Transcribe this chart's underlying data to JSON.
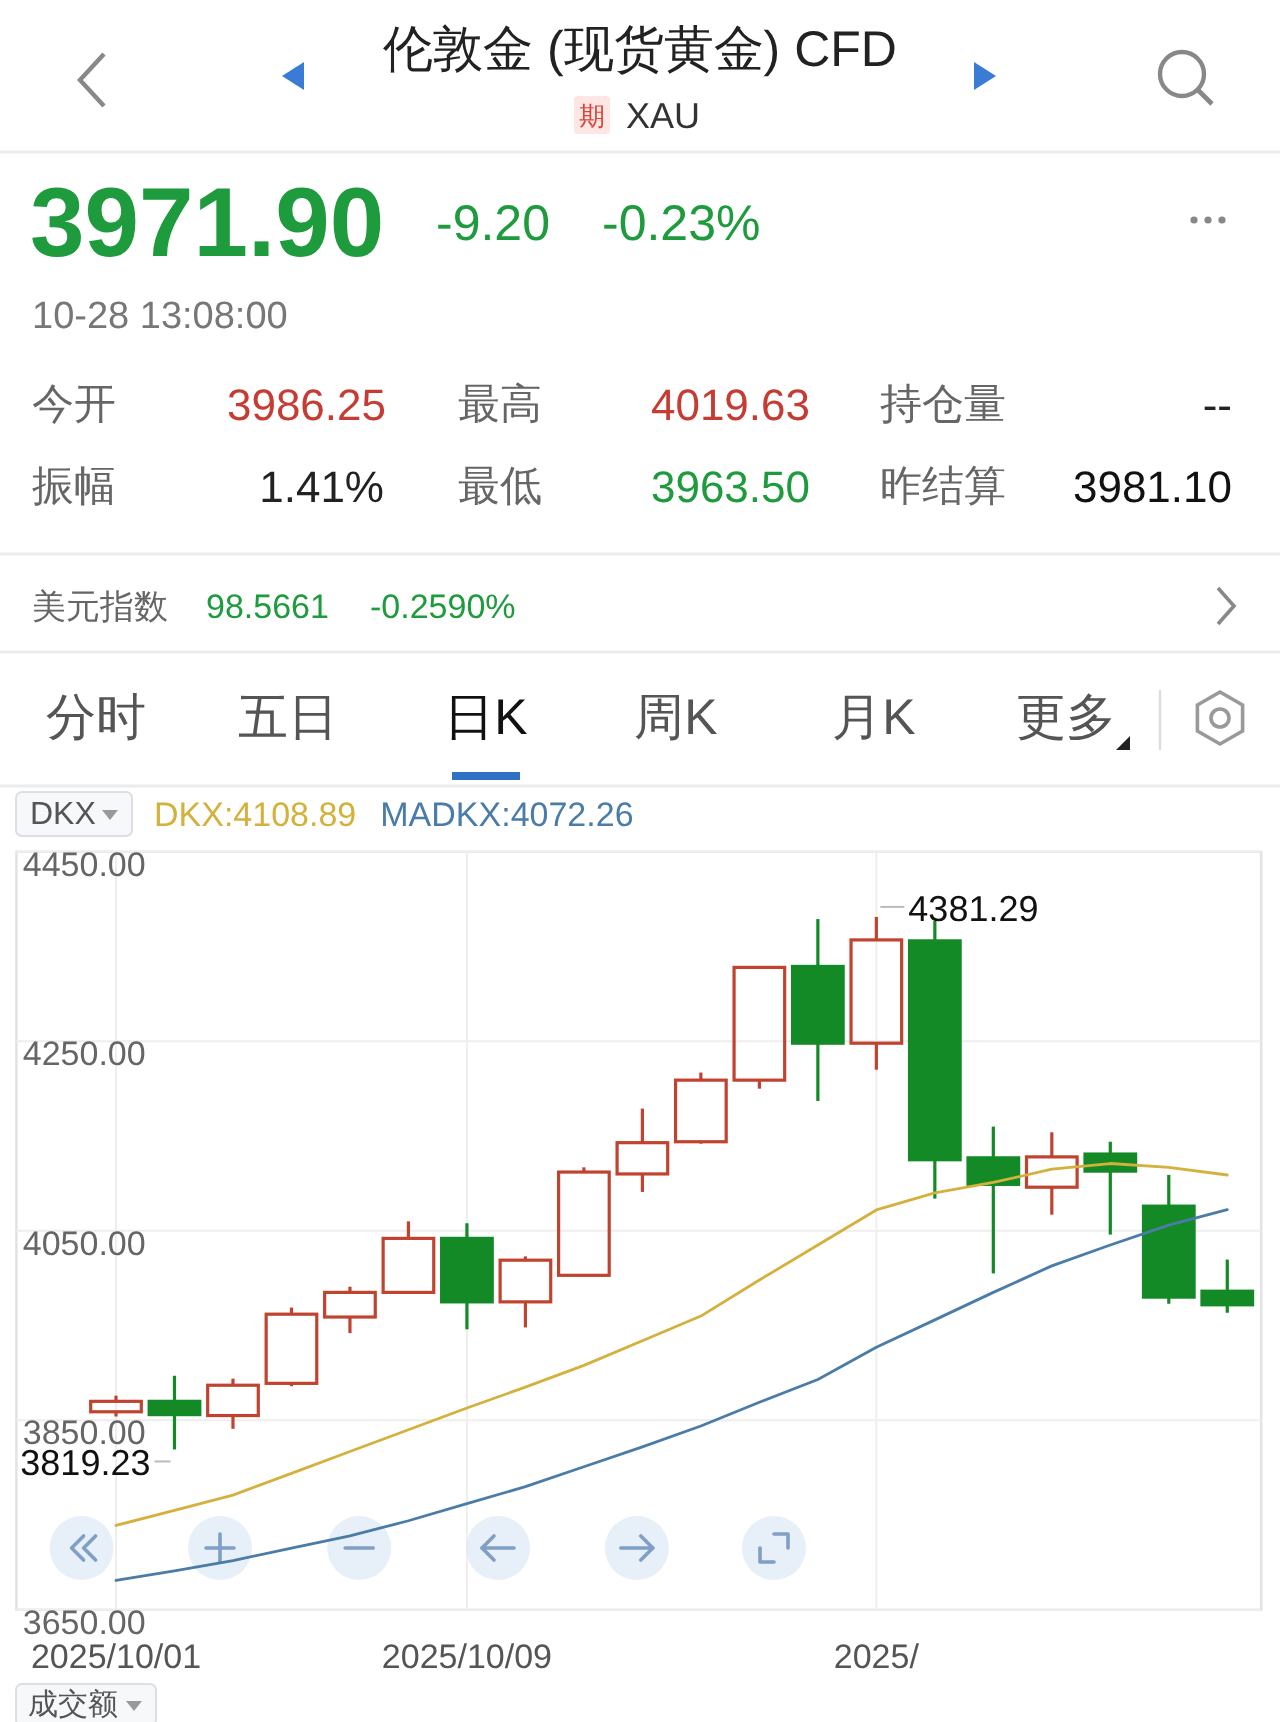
{
  "chart_data": {
    "type": "candlestick",
    "title": "伦敦金 (现货黄金) CFD",
    "subtitle": "XAU",
    "categories": [
      "2025/10/01",
      null,
      null,
      null,
      null,
      null,
      "2025/10/09",
      null,
      null,
      null,
      null,
      null,
      null,
      "2025/",
      null,
      null,
      null,
      null,
      null,
      null
    ],
    "ohlc": [
      [
        3859,
        3876,
        3854,
        3870
      ],
      [
        3870,
        3897,
        3819.23,
        3856
      ],
      [
        3855,
        3894,
        3841,
        3887
      ],
      [
        3889,
        3969,
        3886,
        3962
      ],
      [
        3959,
        3991,
        3942,
        3985
      ],
      [
        3985,
        4060,
        3984,
        4042
      ],
      [
        4042,
        4058,
        3946,
        3975
      ],
      [
        3975,
        4023,
        3948,
        4019
      ],
      [
        4003,
        4117,
        4002,
        4112
      ],
      [
        4110,
        4179,
        4091,
        4143
      ],
      [
        4144,
        4217,
        4142,
        4209
      ],
      [
        4209,
        4329,
        4200,
        4328
      ],
      [
        4329,
        4379,
        4187,
        4248
      ],
      [
        4248,
        4381.29,
        4220,
        4357
      ],
      [
        4356,
        4377,
        4084,
        4125
      ],
      [
        4127,
        4160,
        4005,
        4099
      ],
      [
        4096,
        4154,
        4067,
        4128
      ],
      [
        4131,
        4144,
        4046,
        4113
      ],
      [
        4076,
        4109,
        3973,
        3980
      ],
      [
        3986.25,
        4019.63,
        3963.5,
        3971.9
      ]
    ],
    "colors": [
      "#c0432f",
      "#138a26",
      "#c0432f",
      "#c0432f",
      "#c0432f",
      "#c0432f",
      "#138a26",
      "#c0432f",
      "#c0432f",
      "#c0432f",
      "#c0432f",
      "#c0432f",
      "#138a26",
      "#c0432f",
      "#138a26",
      "#138a26",
      "#c0432f",
      "#138a26",
      "#138a26",
      "#138a26"
    ],
    "series": [
      {
        "name": "DKX:4108.89",
        "type": "line",
        "color": "#d4b13c",
        "values": [
          3739,
          3755,
          3771,
          3794,
          3817,
          3840,
          3863,
          3885,
          3908,
          3934,
          3960,
          3998,
          4035,
          4072,
          4090,
          4101,
          4115,
          4121,
          4117,
          4108.89
        ]
      },
      {
        "name": "MADKX:4072.26",
        "type": "line",
        "color": "#4a7ca8",
        "values": [
          3681,
          3691,
          3702,
          3715,
          3728,
          3744,
          3762,
          3780,
          3801,
          3822,
          3844,
          3869,
          3893,
          3927,
          3956,
          3985,
          4013,
          4035,
          4056,
          4072.26
        ]
      }
    ],
    "ylim": [
      3650,
      4450
    ],
    "yticks": [
      {
        "value": 3650,
        "label": "3650.00"
      },
      {
        "value": 3850,
        "label": "3850.00"
      },
      {
        "value": 4050,
        "label": "4050.00"
      },
      {
        "value": 4250,
        "label": "4250.00"
      },
      {
        "value": 4450,
        "label": "4450.00"
      }
    ],
    "grid": true,
    "legend": "top left",
    "annotations": [
      "期",
      "3971.90",
      "-9.20",
      "-0.23%",
      "10-28 13:08:00",
      "今开",
      "3986.25",
      "最高",
      "4019.63",
      "持仓量",
      "--",
      "振幅",
      "1.41%",
      "最低",
      "3963.50",
      "昨结算",
      "3981.10",
      "美元指数",
      "98.5661",
      "-0.2590%",
      "分时",
      "五日",
      "日K",
      "周K",
      "月K",
      "更多",
      "DKX",
      "4381.29",
      "3819.23",
      "成交额"
    ]
  }
}
